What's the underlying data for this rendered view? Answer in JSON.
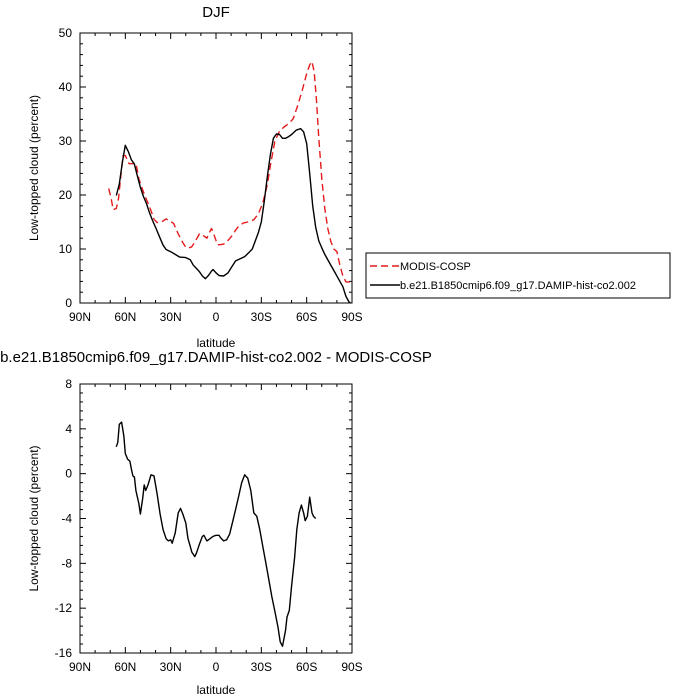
{
  "chart_data": [
    {
      "type": "line",
      "title": "DJF",
      "xlabel": "latitude",
      "ylabel": "Low-topped cloud (percent)",
      "xlim": [
        90,
        -90
      ],
      "ylim": [
        0,
        50
      ],
      "x_ticks": [
        90,
        60,
        30,
        0,
        -30,
        -60,
        -90
      ],
      "x_tick_labels": [
        "90N",
        "60N",
        "30N",
        "0",
        "30S",
        "60S",
        "90S"
      ],
      "y_ticks": [
        0,
        10,
        20,
        30,
        40,
        50
      ],
      "y_tick_labels": [
        "0",
        "10",
        "20",
        "30",
        "40",
        "50"
      ],
      "legend_position": "right-bottom, outside plot",
      "series": [
        {
          "name": "MODIS-COSP",
          "color": "#e41a1c",
          "dash": "dashed",
          "points": [
            [
              71,
              21.2
            ],
            [
              69.5,
              19.5
            ],
            [
              68,
              17.3
            ],
            [
              66,
              17.5
            ],
            [
              64.5,
              19.3
            ],
            [
              63,
              23.5
            ],
            [
              61.5,
              27.3
            ],
            [
              60,
              27.3
            ],
            [
              57.5,
              25.8
            ],
            [
              55,
              25.8
            ],
            [
              53,
              25.9
            ],
            [
              51,
              23
            ],
            [
              49,
              21.3
            ],
            [
              47,
              19.8
            ],
            [
              45,
              18.5
            ],
            [
              43,
              17.1
            ],
            [
              41,
              15.5
            ],
            [
              39,
              14.9
            ],
            [
              36,
              15
            ],
            [
              33,
              15.6
            ],
            [
              30,
              15.1
            ],
            [
              28,
              14.7
            ],
            [
              25,
              12.8
            ],
            [
              22,
              11.2
            ],
            [
              20,
              10.3
            ],
            [
              18,
              10.2
            ],
            [
              16,
              10.4
            ],
            [
              14,
              11.3
            ],
            [
              12,
              12.3
            ],
            [
              11,
              12.8
            ],
            [
              10,
              12.7
            ],
            [
              8,
              12.4
            ],
            [
              6,
              12
            ],
            [
              4.5,
              13
            ],
            [
              3,
              13.8
            ],
            [
              2,
              13.2
            ],
            [
              0.5,
              12
            ],
            [
              -1,
              10.8
            ],
            [
              -3,
              10.8
            ],
            [
              -5,
              10.9
            ],
            [
              -7,
              11.3
            ],
            [
              -9,
              11.9
            ],
            [
              -11,
              12.6
            ],
            [
              -13,
              13.5
            ],
            [
              -15,
              14.2
            ],
            [
              -18,
              14.8
            ],
            [
              -21,
              15
            ],
            [
              -25,
              15.4
            ],
            [
              -28,
              16.5
            ],
            [
              -31,
              18.5
            ],
            [
              -34,
              22
            ],
            [
              -36,
              25.5
            ],
            [
              -39,
              30
            ],
            [
              -42,
              31.8
            ],
            [
              -45,
              32.6
            ],
            [
              -48,
              33.2
            ],
            [
              -51,
              34.1
            ],
            [
              -54,
              36.5
            ],
            [
              -57,
              39.3
            ],
            [
              -60,
              42.5
            ],
            [
              -62,
              44.1
            ],
            [
              -63.5,
              44.7
            ],
            [
              -65,
              42.8
            ],
            [
              -66.5,
              37.5
            ],
            [
              -68,
              30.5
            ],
            [
              -70,
              23
            ],
            [
              -72,
              17.5
            ],
            [
              -74,
              13.8
            ],
            [
              -76,
              11.4
            ],
            [
              -78,
              10
            ],
            [
              -80,
              9.5
            ],
            [
              -82,
              7
            ],
            [
              -84,
              5
            ],
            [
              -86,
              3.9
            ],
            [
              -89,
              3.9
            ]
          ]
        },
        {
          "name": "b.e21.B1850cmip6.f09_g17.DAMIP-hist-co2.002",
          "color": "#000000",
          "dash": "solid",
          "points": [
            [
              66,
              19.9
            ],
            [
              64,
              22
            ],
            [
              62,
              26
            ],
            [
              60,
              29.2
            ],
            [
              58,
              28
            ],
            [
              56,
              26.5
            ],
            [
              54,
              25.7
            ],
            [
              52,
              23.5
            ],
            [
              50,
              21.4
            ],
            [
              48,
              19.7
            ],
            [
              46,
              18.4
            ],
            [
              44,
              16.7
            ],
            [
              42,
              15.3
            ],
            [
              40,
              14
            ],
            [
              37,
              12
            ],
            [
              35,
              10.7
            ],
            [
              33,
              9.9
            ],
            [
              30,
              9.5
            ],
            [
              27,
              9
            ],
            [
              24,
              8.5
            ],
            [
              20,
              8.4
            ],
            [
              17,
              8
            ],
            [
              15,
              7
            ],
            [
              13,
              6.4
            ],
            [
              11,
              5.8
            ],
            [
              9,
              5
            ],
            [
              7,
              4.5
            ],
            [
              5,
              5.1
            ],
            [
              3,
              5.9
            ],
            [
              2,
              6.2
            ],
            [
              0,
              5.6
            ],
            [
              -2,
              5.1
            ],
            [
              -5,
              5
            ],
            [
              -8,
              5.6
            ],
            [
              -10,
              6.5
            ],
            [
              -13,
              7.8
            ],
            [
              -16,
              8.2
            ],
            [
              -19,
              8.6
            ],
            [
              -22,
              9.4
            ],
            [
              -24,
              10
            ],
            [
              -26,
              11.5
            ],
            [
              -28,
              13
            ],
            [
              -30,
              15
            ],
            [
              -32,
              19
            ],
            [
              -34,
              23.5
            ],
            [
              -36,
              27.5
            ],
            [
              -38,
              30.5
            ],
            [
              -40,
              31.3
            ],
            [
              -42,
              31.2
            ],
            [
              -44,
              30.5
            ],
            [
              -46,
              30.5
            ],
            [
              -48,
              30.8
            ],
            [
              -50,
              31.2
            ],
            [
              -53,
              32
            ],
            [
              -56,
              32.3
            ],
            [
              -58,
              31.7
            ],
            [
              -60,
              29.5
            ],
            [
              -62,
              24
            ],
            [
              -64,
              18
            ],
            [
              -66,
              14
            ],
            [
              -68,
              11.5
            ],
            [
              -70,
              10.2
            ],
            [
              -72,
              9
            ],
            [
              -75,
              7.5
            ],
            [
              -78,
              6
            ],
            [
              -81,
              4.5
            ],
            [
              -84,
              3
            ],
            [
              -86,
              1.2
            ],
            [
              -88,
              0.2
            ],
            [
              -89,
              0
            ]
          ]
        }
      ]
    },
    {
      "type": "line",
      "title": "b.e21.B1850cmip6.f09_g17.DAMIP-hist-co2.002 - MODIS-COSP",
      "xlabel": "latitude",
      "ylabel": "Low-topped cloud (percent)",
      "xlim": [
        90,
        -90
      ],
      "ylim": [
        -16,
        8
      ],
      "x_ticks": [
        90,
        60,
        30,
        0,
        -30,
        -60,
        -90
      ],
      "x_tick_labels": [
        "90N",
        "60N",
        "30N",
        "0",
        "30S",
        "60S",
        "90S"
      ],
      "y_ticks": [
        -16,
        -12,
        -8,
        -4,
        0,
        4,
        8
      ],
      "y_tick_labels": [
        "-16",
        "-12",
        "-8",
        "-4",
        "0",
        "4",
        "8"
      ],
      "series": [
        {
          "color": "#000000",
          "dash": "solid",
          "points": [
            [
              66,
              2.4
            ],
            [
              65,
              2.8
            ],
            [
              64,
              4.4
            ],
            [
              62.5,
              4.6
            ],
            [
              61,
              3.4
            ],
            [
              60,
              1.8
            ],
            [
              58.5,
              1.3
            ],
            [
              57,
              1.1
            ],
            [
              56,
              0.4
            ],
            [
              55,
              -0.2
            ],
            [
              54,
              -0.3
            ],
            [
              53,
              -1.5
            ],
            [
              51,
              -2.7
            ],
            [
              50,
              -3.6
            ],
            [
              48.5,
              -2.2
            ],
            [
              47.5,
              -1
            ],
            [
              46.5,
              -1.5
            ],
            [
              45,
              -1
            ],
            [
              43,
              -0.1
            ],
            [
              41,
              -0.2
            ],
            [
              39,
              -1.8
            ],
            [
              37,
              -3.6
            ],
            [
              35,
              -5
            ],
            [
              33,
              -5.8
            ],
            [
              31.5,
              -6
            ],
            [
              30,
              -5.9
            ],
            [
              29,
              -6.2
            ],
            [
              27,
              -5.3
            ],
            [
              25,
              -3.5
            ],
            [
              23.5,
              -3.1
            ],
            [
              22,
              -3.6
            ],
            [
              20,
              -4.4
            ],
            [
              18.5,
              -5.8
            ],
            [
              17,
              -6.5
            ],
            [
              16,
              -7
            ],
            [
              14,
              -7.4
            ],
            [
              13,
              -7.1
            ],
            [
              11,
              -6.3
            ],
            [
              9,
              -5.6
            ],
            [
              8,
              -5.5
            ],
            [
              6,
              -6
            ],
            [
              4,
              -5.8
            ],
            [
              2,
              -5.6
            ],
            [
              0,
              -5.5
            ],
            [
              -2,
              -5.5
            ],
            [
              -3,
              -5.7
            ],
            [
              -5,
              -6
            ],
            [
              -7,
              -5.9
            ],
            [
              -9,
              -5.4
            ],
            [
              -11,
              -4.3
            ],
            [
              -13,
              -3.2
            ],
            [
              -15,
              -2
            ],
            [
              -17,
              -0.8
            ],
            [
              -19,
              -0.1
            ],
            [
              -21,
              -0.4
            ],
            [
              -23,
              -1.5
            ],
            [
              -25,
              -3.5
            ],
            [
              -27,
              -3.8
            ],
            [
              -29,
              -5
            ],
            [
              -31,
              -6.5
            ],
            [
              -33,
              -8
            ],
            [
              -35,
              -9.5
            ],
            [
              -37,
              -11
            ],
            [
              -39,
              -12.3
            ],
            [
              -41,
              -13.7
            ],
            [
              -42.5,
              -15
            ],
            [
              -44,
              -15.4
            ],
            [
              -46,
              -14
            ],
            [
              -47,
              -12.8
            ],
            [
              -48.5,
              -12.2
            ],
            [
              -50,
              -10
            ],
            [
              -52,
              -7.5
            ],
            [
              -53.5,
              -5
            ],
            [
              -55,
              -3.5
            ],
            [
              -56.5,
              -2.8
            ],
            [
              -58,
              -3.5
            ],
            [
              -59,
              -4.2
            ],
            [
              -60.5,
              -3.8
            ],
            [
              -62,
              -2.1
            ],
            [
              -63.5,
              -3.5
            ],
            [
              -64.5,
              -3.8
            ],
            [
              -66,
              -4
            ]
          ]
        }
      ]
    }
  ]
}
